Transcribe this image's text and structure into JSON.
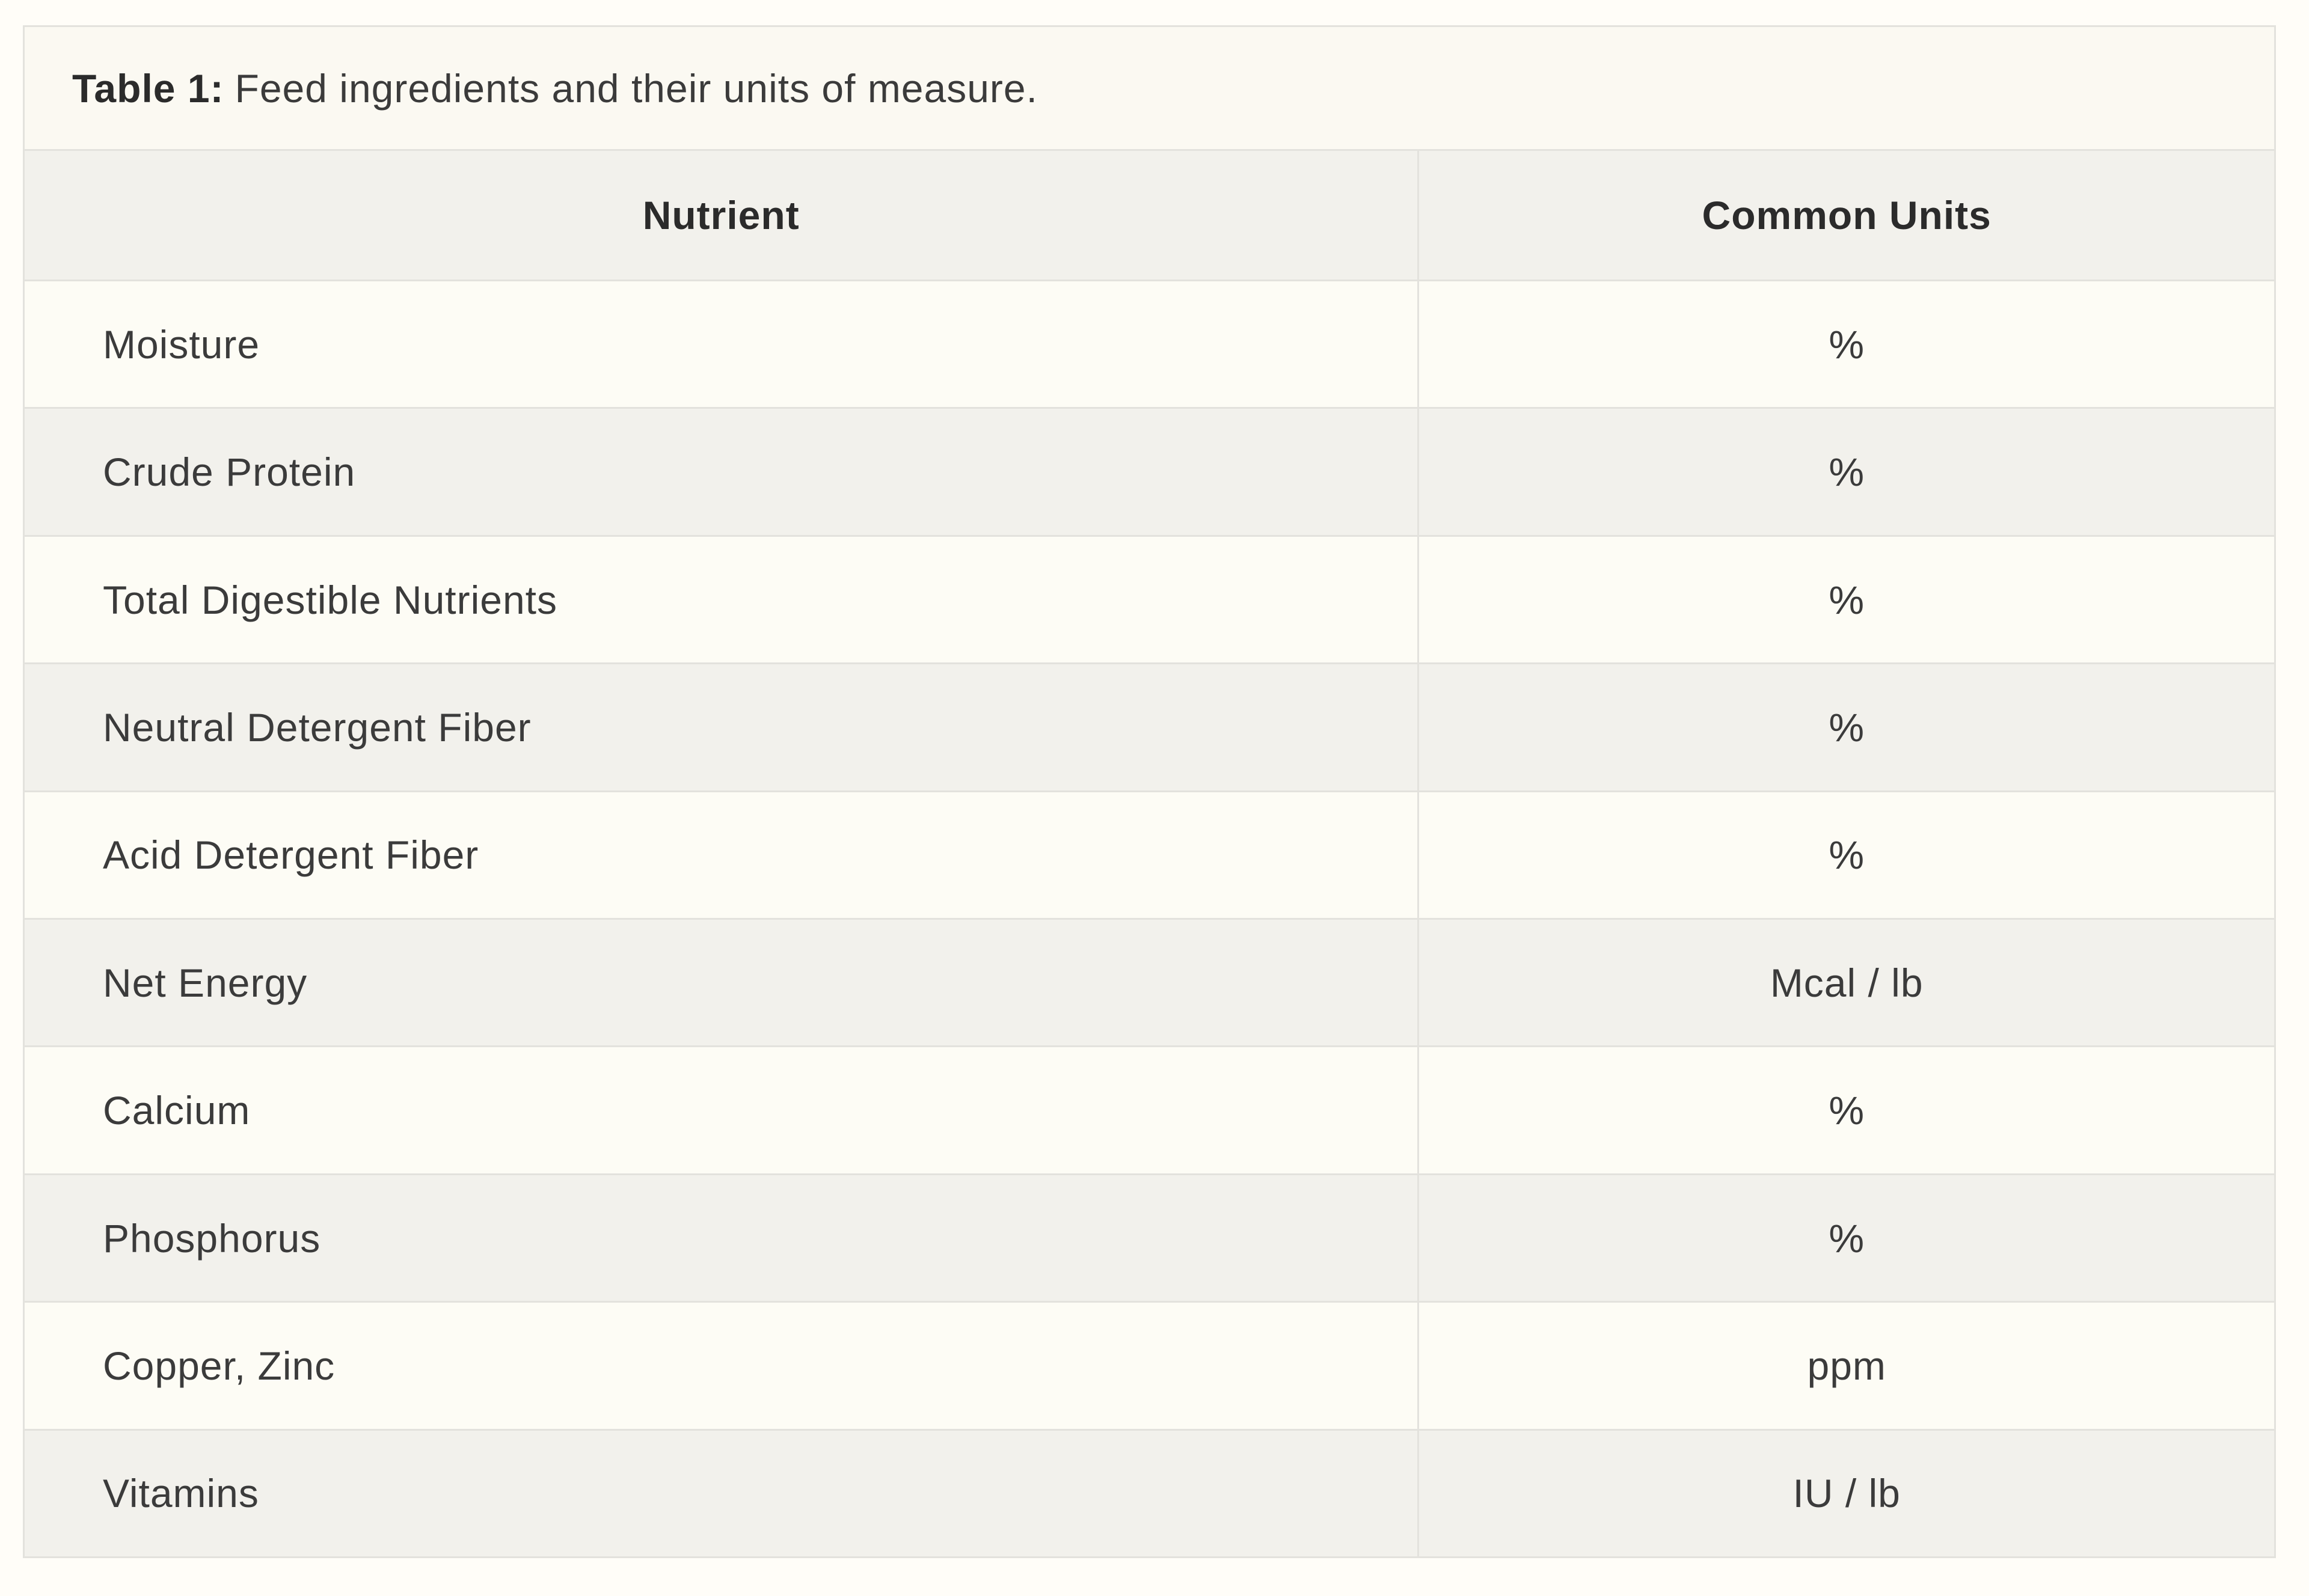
{
  "caption": {
    "label": "Table 1:",
    "text": "Feed ingredients and their units of measure."
  },
  "table": {
    "columns": [
      "Nutrient",
      "Common Units"
    ],
    "rows": [
      {
        "nutrient": "Moisture",
        "units": "%"
      },
      {
        "nutrient": "Crude Protein",
        "units": "%"
      },
      {
        "nutrient": "Total Digestible Nutrients",
        "units": "%"
      },
      {
        "nutrient": "Neutral Detergent Fiber",
        "units": "%"
      },
      {
        "nutrient": "Acid Detergent Fiber",
        "units": "%"
      },
      {
        "nutrient": "Net Energy",
        "units": "Mcal / lb"
      },
      {
        "nutrient": "Calcium",
        "units": "%"
      },
      {
        "nutrient": "Phosphorus",
        "units": "%"
      },
      {
        "nutrient": "Copper, Zinc",
        "units": "ppm"
      },
      {
        "nutrient": "Vitamins",
        "units": "IU / lb"
      }
    ]
  },
  "theme": {
    "page-bg": "#FFFDF8",
    "cream": "#FDFCF5",
    "band": "#FBF9F2",
    "gray": "#F2F1EC",
    "line": "#E3E2DD",
    "text": "#3B3B3B",
    "text-strong": "#2B2B2B"
  }
}
